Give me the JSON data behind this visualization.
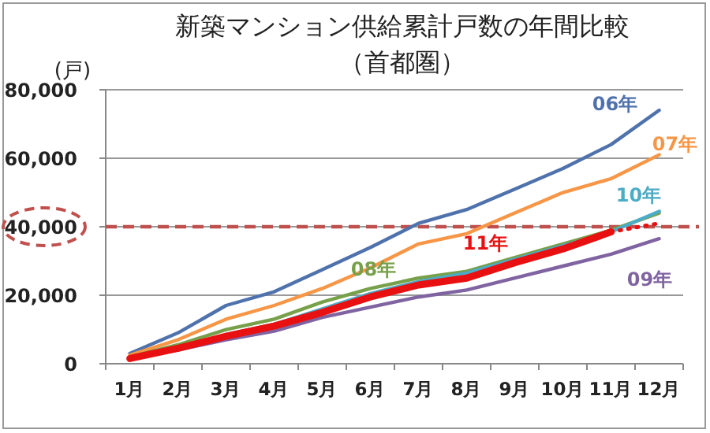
{
  "chart_data": {
    "type": "line",
    "title": "新築マンション供給累計戸数の年間比較",
    "subtitle": "（首都圏）",
    "ylabel": "(戸)",
    "categories": [
      "1月",
      "2月",
      "3月",
      "4月",
      "5月",
      "6月",
      "7月",
      "8月",
      "9月",
      "10月",
      "11月",
      "12月"
    ],
    "ylim": [
      0,
      80000
    ],
    "yticks": [
      {
        "value": 0,
        "label": "0"
      },
      {
        "value": 20000,
        "label": "20,000"
      },
      {
        "value": 40000,
        "label": "40,000"
      },
      {
        "value": 60000,
        "label": "60,000"
      },
      {
        "value": 80000,
        "label": "80,000"
      }
    ],
    "grid": "y",
    "ref_lines": [
      {
        "axis": "y",
        "value": 40000,
        "color": "#c0504d",
        "line_style": "dashed"
      }
    ],
    "series": [
      {
        "name": "06年",
        "color": "#4f72ad",
        "values": [
          3000,
          9000,
          17000,
          21000,
          27500,
          34000,
          41000,
          45000,
          51000,
          57000,
          64000,
          74000
        ]
      },
      {
        "name": "07年",
        "color": "#f79646",
        "values": [
          2500,
          7000,
          13000,
          17000,
          22000,
          28000,
          35000,
          38000,
          44000,
          50000,
          54000,
          61000
        ]
      },
      {
        "name": "08年",
        "color": "#77a04a",
        "values": [
          2000,
          5500,
          10000,
          13000,
          18000,
          22000,
          25000,
          27000,
          31000,
          35000,
          39000,
          44000
        ]
      },
      {
        "name": "09年",
        "color": "#8064a2",
        "values": [
          1500,
          4000,
          7000,
          9500,
          13500,
          16500,
          19500,
          21500,
          25000,
          28500,
          32000,
          36500
        ]
      },
      {
        "name": "10年",
        "color": "#4bacc6",
        "values": [
          null,
          null,
          8500,
          11500,
          16000,
          20500,
          24000,
          26500,
          30500,
          34500,
          38500,
          44500
        ]
      },
      {
        "name": "11年",
        "color": "#e81010",
        "values": [
          1500,
          4500,
          8000,
          11000,
          15000,
          19500,
          23000,
          25000,
          29500,
          33500,
          38500,
          null
        ]
      },
      {
        "color": "#e81010",
        "line_style": "dotted",
        "values": [
          null,
          null,
          null,
          null,
          null,
          null,
          null,
          null,
          null,
          null,
          38500,
          41000
        ]
      }
    ]
  }
}
